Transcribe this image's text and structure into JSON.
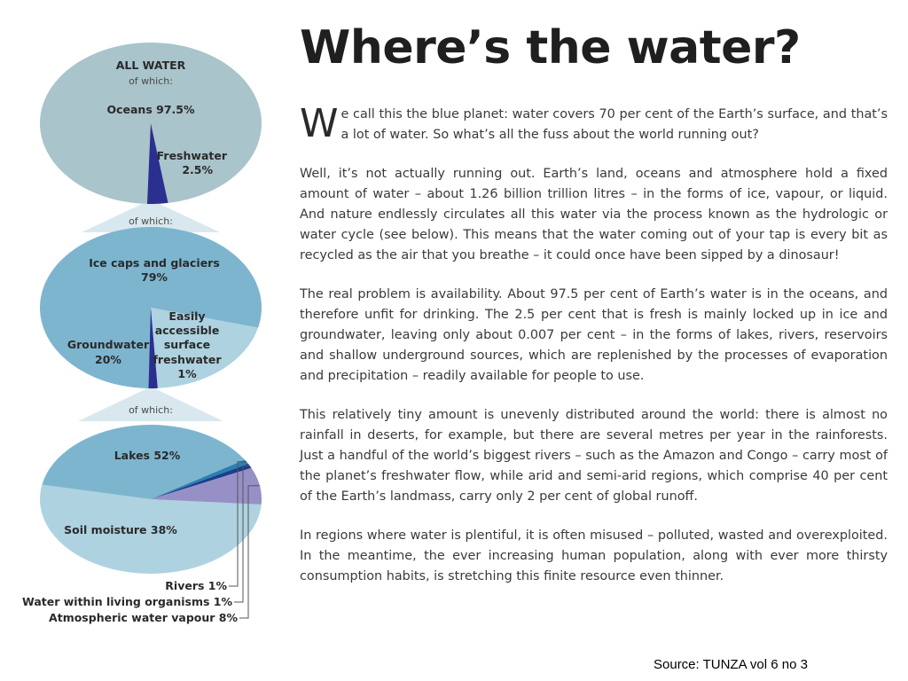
{
  "article": {
    "title": "Where’s the water?",
    "dropcap": "W",
    "intro": "e call this the blue planet: water covers 70 per cent of the Earth’s surface, and that’s a lot of water. So what’s all the fuss about the world running out?",
    "paragraphs": [
      "Well, it’s not actually running out. Earth’s land, oceans and atmosphere hold a fixed amount of water – about 1.26 billion trillion litres – in the forms of ice, vapour, or liquid. And nature endlessly circulates all this water via the process known as the hydrologic or water cycle (see below). This means that the water coming out of your tap is every bit as recycled as the air that you breathe – it could once have been sipped by a dinosaur!",
      "The real problem is availability. About 97.5 per cent of Earth’s water is in the oceans, and therefore unfit for drinking. The 2.5 per cent that is fresh is mainly locked up in ice and groundwater, leaving only about 0.007 per cent – in the forms of lakes, rivers, reservoirs and shallow underground sources, which are replenished by the processes of evaporation and precipitation – readily available for people to use.",
      "This relatively tiny amount is unevenly distributed around the world: there is almost no rainfall in deserts, for example, but there are several metres per year in the rainforests. Just a handful of the world’s biggest rivers – such as the Amazon and Congo – carry most of the planet’s freshwater flow, while arid and semi-arid regions, which comprise 40 per cent of the Earth’s landmass, carry only 2 per cent of global runoff.",
      "In regions where water is plentiful, it is often misused – polluted, wasted and overexploited. In the meantime, the ever increasing human population, along with ever more thirsty consumption habits, is stretching this finite resource even thinner."
    ],
    "source": "Source: TUNZA vol 6 no 3"
  },
  "chart_data": [
    {
      "type": "pie",
      "title": "ALL WATER",
      "subtitle": "of which:",
      "slices": [
        {
          "label": "Oceans",
          "value": 97.5,
          "color": "#a9c4ca"
        },
        {
          "label": "Freshwater",
          "value": 2.5,
          "color": "#2b2f8f"
        }
      ],
      "labels": [
        "Oceans 97.5%",
        "Freshwater",
        "2.5%"
      ]
    },
    {
      "type": "pie",
      "connector_label": "of which:",
      "slices": [
        {
          "label": "Ice caps and glaciers",
          "value": 79,
          "color": "#7db5cf"
        },
        {
          "label": "Groundwater",
          "value": 20,
          "color": "#aed2e0"
        },
        {
          "label": "Easily accessible surface freshwater",
          "value": 1,
          "color": "#2b2f8f"
        }
      ],
      "labels": [
        "Ice caps and glaciers",
        "79%",
        "Groundwater",
        "20%",
        "Easily",
        "accessible",
        "surface",
        "freshwater",
        "1%"
      ]
    },
    {
      "type": "pie",
      "connector_label": "of which:",
      "slices": [
        {
          "label": "Lakes",
          "value": 52,
          "color": "#aed2e0"
        },
        {
          "label": "Soil moisture",
          "value": 38,
          "color": "#7db5cf"
        },
        {
          "label": "Rivers",
          "value": 1,
          "color": "#2a80b0"
        },
        {
          "label": "Water within living organisms",
          "value": 1,
          "color": "#1c3c8c"
        },
        {
          "label": "Atmospheric water vapour",
          "value": 8,
          "color": "#9690c6"
        }
      ],
      "labels": [
        "Lakes 52%",
        "Soil moisture 38%",
        "Rivers 1%",
        "Water within living organisms 1%",
        "Atmospheric water vapour 8%"
      ]
    }
  ]
}
